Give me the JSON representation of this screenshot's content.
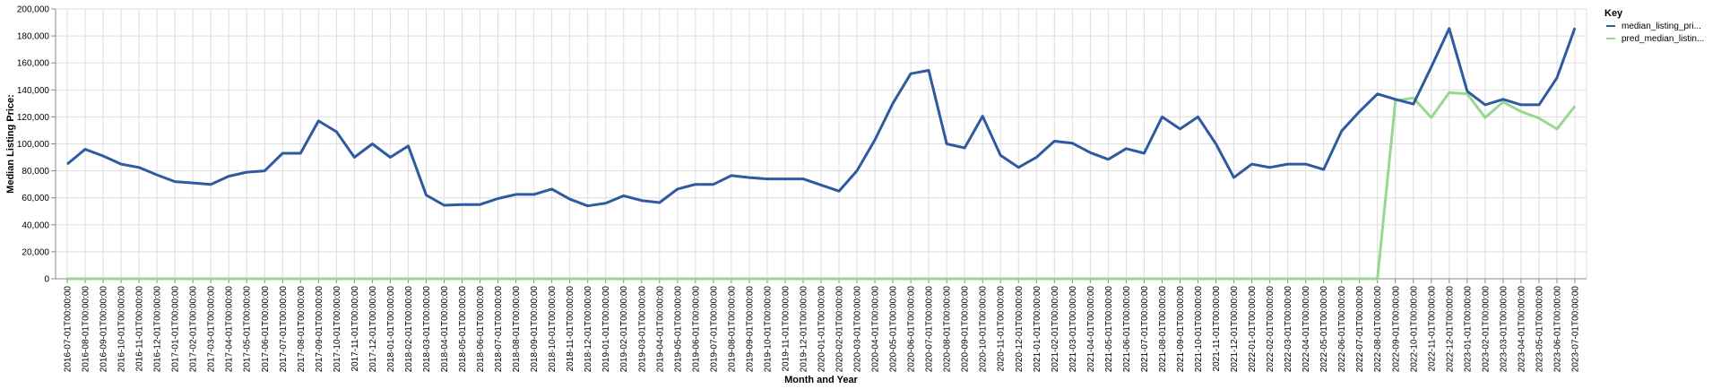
{
  "chart_data": {
    "type": "line",
    "title": "",
    "xlabel": "Month and Year",
    "ylabel": "Median Listing Price:",
    "ylim": [
      0,
      200000
    ],
    "y_ticks": [
      0,
      20000,
      40000,
      60000,
      80000,
      100000,
      120000,
      140000,
      160000,
      180000,
      200000
    ],
    "y_tick_labels": [
      "0",
      "20,000",
      "40,000",
      "60,000",
      "80,000",
      "100,000",
      "120,000",
      "140,000",
      "160,000",
      "180,000",
      "200,000"
    ],
    "grid": true,
    "legend": {
      "title": "Key",
      "position": "top-right"
    },
    "x": [
      "2016-07-01T00:00:00",
      "2016-08-01T00:00:00",
      "2016-09-01T00:00:00",
      "2016-10-01T00:00:00",
      "2016-11-01T00:00:00",
      "2016-12-01T00:00:00",
      "2017-01-01T00:00:00",
      "2017-02-01T00:00:00",
      "2017-03-01T00:00:00",
      "2017-04-01T00:00:00",
      "2017-05-01T00:00:00",
      "2017-06-01T00:00:00",
      "2017-07-01T00:00:00",
      "2017-08-01T00:00:00",
      "2017-09-01T00:00:00",
      "2017-10-01T00:00:00",
      "2017-11-01T00:00:00",
      "2017-12-01T00:00:00",
      "2018-01-01T00:00:00",
      "2018-02-01T00:00:00",
      "2018-03-01T00:00:00",
      "2018-04-01T00:00:00",
      "2018-05-01T00:00:00",
      "2018-06-01T00:00:00",
      "2018-07-01T00:00:00",
      "2018-08-01T00:00:00",
      "2018-09-01T00:00:00",
      "2018-10-01T00:00:00",
      "2018-11-01T00:00:00",
      "2018-12-01T00:00:00",
      "2019-01-01T00:00:00",
      "2019-02-01T00:00:00",
      "2019-03-01T00:00:00",
      "2019-04-01T00:00:00",
      "2019-05-01T00:00:00",
      "2019-06-01T00:00:00",
      "2019-07-01T00:00:00",
      "2019-08-01T00:00:00",
      "2019-09-01T00:00:00",
      "2019-10-01T00:00:00",
      "2019-11-01T00:00:00",
      "2019-12-01T00:00:00",
      "2020-01-01T00:00:00",
      "2020-02-01T00:00:00",
      "2020-03-01T00:00:00",
      "2020-04-01T00:00:00",
      "2020-05-01T00:00:00",
      "2020-06-01T00:00:00",
      "2020-07-01T00:00:00",
      "2020-08-01T00:00:00",
      "2020-09-01T00:00:00",
      "2020-10-01T00:00:00",
      "2020-11-01T00:00:00",
      "2020-12-01T00:00:00",
      "2021-01-01T00:00:00",
      "2021-02-01T00:00:00",
      "2021-03-01T00:00:00",
      "2021-04-01T00:00:00",
      "2021-05-01T00:00:00",
      "2021-06-01T00:00:00",
      "2021-07-01T00:00:00",
      "2021-08-01T00:00:00",
      "2021-09-01T00:00:00",
      "2021-10-01T00:00:00",
      "2021-11-01T00:00:00",
      "2021-12-01T00:00:00",
      "2022-01-01T00:00:00",
      "2022-02-01T00:00:00",
      "2022-03-01T00:00:00",
      "2022-04-01T00:00:00",
      "2022-05-01T00:00:00",
      "2022-06-01T00:00:00",
      "2022-07-01T00:00:00",
      "2022-08-01T00:00:00",
      "2022-09-01T00:00:00",
      "2022-10-01T00:00:00",
      "2022-11-01T00:00:00",
      "2022-12-01T00:00:00",
      "2023-01-01T00:00:00",
      "2023-02-01T00:00:00",
      "2023-03-01T00:00:00",
      "2023-04-01T00:00:00",
      "2023-05-01T00:00:00",
      "2023-06-01T00:00:00",
      "2023-07-01T00:00:00"
    ],
    "series": [
      {
        "name": "median_listing_pri...",
        "color": "#2d5aa0",
        "values": [
          85000,
          96000,
          91000,
          85000,
          82500,
          77000,
          72000,
          71000,
          70000,
          76000,
          79000,
          80000,
          93000,
          93000,
          117000,
          109000,
          90000,
          100000,
          90000,
          98500,
          62000,
          54500,
          55000,
          55000,
          59500,
          62500,
          62500,
          66500,
          59000,
          54000,
          56000,
          61500,
          58000,
          56500,
          66500,
          70000,
          70000,
          76500,
          75000,
          74000,
          74000,
          74000,
          69500,
          65000,
          80000,
          103000,
          130000,
          152000,
          154500,
          100000,
          97000,
          120500,
          91500,
          82500,
          90000,
          102000,
          100500,
          93500,
          88500,
          96500,
          93000,
          120000,
          111000,
          120000,
          100000,
          75000,
          85000,
          82500,
          85000,
          85000,
          81000,
          109500,
          124000,
          137000,
          133000,
          129500,
          157000,
          185500,
          139000,
          129000,
          133000,
          129000,
          129000,
          149000,
          186000
        ]
      },
      {
        "name": "pred_median_listin...",
        "color": "#98d692",
        "values": [
          0,
          0,
          0,
          0,
          0,
          0,
          0,
          0,
          0,
          0,
          0,
          0,
          0,
          0,
          0,
          0,
          0,
          0,
          0,
          0,
          0,
          0,
          0,
          0,
          0,
          0,
          0,
          0,
          0,
          0,
          0,
          0,
          0,
          0,
          0,
          0,
          0,
          0,
          0,
          0,
          0,
          0,
          0,
          0,
          0,
          0,
          0,
          0,
          0,
          0,
          0,
          0,
          0,
          0,
          0,
          0,
          0,
          0,
          0,
          0,
          0,
          0,
          0,
          0,
          0,
          0,
          0,
          0,
          0,
          0,
          0,
          0,
          0,
          0,
          132000,
          134000,
          119500,
          138000,
          137000,
          119500,
          131000,
          124000,
          119000,
          111000,
          128000
        ]
      }
    ]
  }
}
